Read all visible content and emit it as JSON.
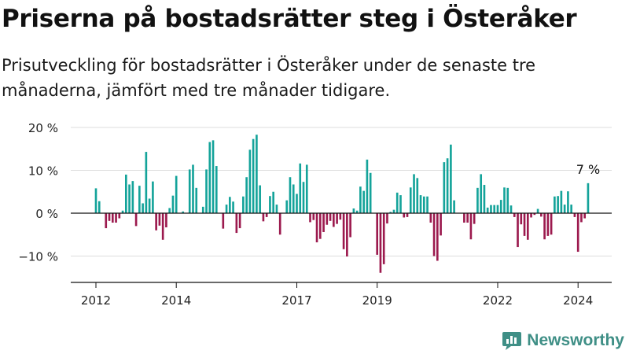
{
  "header": {
    "title": "Priserna på bostadsrätter steg i Österåker",
    "subtitle": "Prisutveckling för bostadsrätter i Österåker under de senaste tre månaderna, jämfört med tre månader tidigare."
  },
  "brand": {
    "name": "Newsworthy",
    "icon": "newsworthy-logo-icon",
    "color": "#3f8f86"
  },
  "colors": {
    "positive": "#14a39a",
    "negative": "#9c1a4e",
    "axis": "#111111",
    "grid": "#dddddd"
  },
  "chart_data": {
    "type": "bar",
    "title": "",
    "xlabel": "",
    "ylabel": "",
    "ylim": [
      -15,
      20
    ],
    "y_ticks": [
      20,
      10,
      0,
      -10
    ],
    "y_tick_labels": [
      "20 %",
      "10 %",
      "0 %",
      "−10 %"
    ],
    "x_ticks": [
      2012,
      2014,
      2017,
      2019,
      2022,
      2024
    ],
    "x_tick_labels": [
      "2012",
      "2014",
      "2017",
      "2019",
      "2022",
      "2024"
    ],
    "x_start": 2012.0,
    "step": 0.08333,
    "grid": true,
    "annotation": {
      "text": "7 %",
      "target": "last"
    },
    "series": [
      {
        "values": [
          5.8,
          2.8,
          0,
          -3.5,
          -1.8,
          -2.2,
          -2.2,
          -1.2,
          0.6,
          9.0,
          6.7,
          7.5,
          -3.0,
          6.4,
          2.3,
          14.3,
          3.4,
          7.4,
          -4.0,
          -2.9,
          -6.2,
          -3.3,
          1.2,
          4.1,
          8.7,
          0,
          0.4,
          0,
          10.2,
          11.3,
          5.9,
          0,
          1.5,
          10.2,
          16.6,
          17.0,
          11.0,
          0,
          -3.6,
          2.0,
          3.8,
          2.7,
          -4.6,
          -3.5,
          3.9,
          8.4,
          14.8,
          17.3,
          18.3,
          6.5,
          -1.9,
          -0.9,
          4.0,
          5.0,
          2.0,
          -5.0,
          0,
          3.0,
          8.4,
          6.7,
          4.5,
          11.6,
          7.3,
          11.3,
          -2.1,
          -1.6,
          -6.8,
          -6.0,
          -4.4,
          -2.7,
          -1.8,
          -3.2,
          -2.5,
          -1.5,
          -8.4,
          -10.1,
          -5.6,
          1.1,
          0.6,
          6.2,
          5.2,
          12.5,
          9.4,
          0,
          -9.7,
          -13.9,
          -11.9,
          -2.4,
          0.3,
          0.8,
          4.8,
          4.2,
          -1.0,
          -0.9,
          6.0,
          9.1,
          8.2,
          4.2,
          3.9,
          3.9,
          -2.2,
          -10.0,
          -11.1,
          -5.2,
          11.9,
          12.8,
          16.0,
          3.0,
          0,
          0,
          -2.2,
          -2.2,
          -6.1,
          -2.5,
          5.9,
          9.1,
          6.6,
          1.3,
          1.9,
          1.9,
          1.9,
          3.1,
          6.0,
          5.9,
          1.8,
          -0.9,
          -7.9,
          -2.6,
          -5.3,
          -6.2,
          -1.0,
          -0.4,
          1.0,
          -0.8,
          -6.1,
          -5.3,
          -5.0,
          3.9,
          4.0,
          5.2,
          2.0,
          5.1,
          2.0,
          -0.9,
          -9.0,
          -2.1,
          -1.2,
          7.0
        ]
      }
    ]
  }
}
